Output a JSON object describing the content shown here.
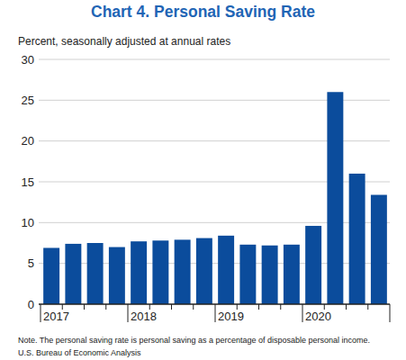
{
  "chart_data": {
    "type": "bar",
    "title": "Chart 4. Personal Saving Rate",
    "subtitle": "Percent, seasonally adjusted at annual rates",
    "note": "Note. The personal saving rate is personal saving as a percentage of disposable personal income.",
    "source": "U.S. Bureau of Economic Analysis",
    "categories": [
      "2017",
      null,
      null,
      null,
      "2018",
      null,
      null,
      null,
      "2019",
      null,
      null,
      null,
      "2020",
      null,
      null,
      null
    ],
    "values": [
      6.9,
      7.4,
      7.5,
      7.0,
      7.7,
      7.8,
      7.9,
      8.1,
      8.4,
      7.3,
      7.2,
      7.3,
      9.6,
      26.0,
      16.0,
      13.4
    ],
    "color": "#0b4c9c",
    "ylim": [
      0,
      30
    ],
    "yticks": [
      0,
      5,
      10,
      15,
      20,
      25,
      30
    ],
    "grid": true
  }
}
